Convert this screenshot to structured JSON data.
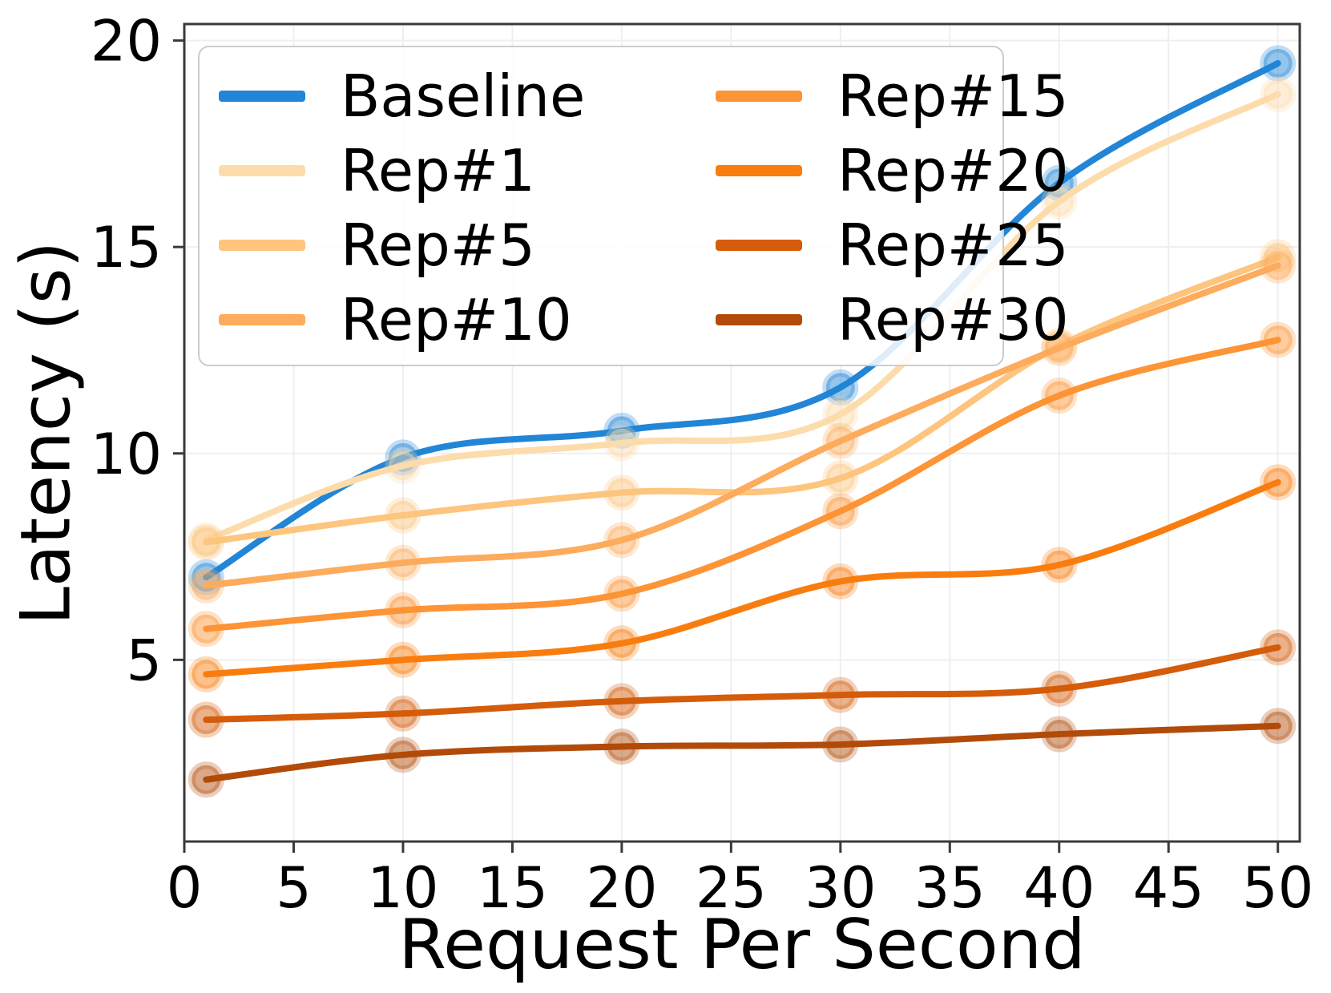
{
  "chart_data": {
    "type": "line",
    "title": "",
    "xlabel": "Request Per Second",
    "ylabel": "Latency (s)",
    "x": [
      1,
      10,
      20,
      30,
      40,
      50
    ],
    "xlim": [
      0,
      51
    ],
    "ylim": [
      0.6,
      20.4
    ],
    "x_ticks": [
      0,
      5,
      10,
      15,
      20,
      25,
      30,
      35,
      40,
      45,
      50
    ],
    "y_ticks": [
      5,
      10,
      15,
      20
    ],
    "grid": "on",
    "grid_color": "#efefef",
    "spine_color": "#3a3a3a",
    "legend": {
      "position": "upper left",
      "columns": 2
    },
    "series": [
      {
        "name": "Baseline",
        "color": "#2285d6",
        "values": [
          7.0,
          9.9,
          10.55,
          11.6,
          16.55,
          19.45
        ]
      },
      {
        "name": "Rep#1",
        "color": "#fddcab",
        "values": [
          7.9,
          9.7,
          10.25,
          10.95,
          16.1,
          18.7
        ]
      },
      {
        "name": "Rep#5",
        "color": "#fdc57e",
        "values": [
          7.85,
          8.5,
          9.05,
          9.4,
          12.6,
          14.75
        ]
      },
      {
        "name": "Rep#10",
        "color": "#fdab5c",
        "values": [
          6.8,
          7.35,
          7.9,
          10.3,
          12.55,
          14.55
        ]
      },
      {
        "name": "Rep#15",
        "color": "#fd9435",
        "values": [
          5.75,
          6.2,
          6.6,
          8.6,
          11.4,
          12.75
        ]
      },
      {
        "name": "Rep#20",
        "color": "#f97d0e",
        "values": [
          4.65,
          5.0,
          5.4,
          6.9,
          7.3,
          9.3
        ]
      },
      {
        "name": "Rep#25",
        "color": "#d45c0a",
        "values": [
          3.55,
          3.7,
          4.0,
          4.15,
          4.3,
          5.3
        ]
      },
      {
        "name": "Rep#30",
        "color": "#b24b09",
        "values": [
          2.1,
          2.7,
          2.9,
          2.95,
          3.2,
          3.4
        ]
      }
    ]
  }
}
